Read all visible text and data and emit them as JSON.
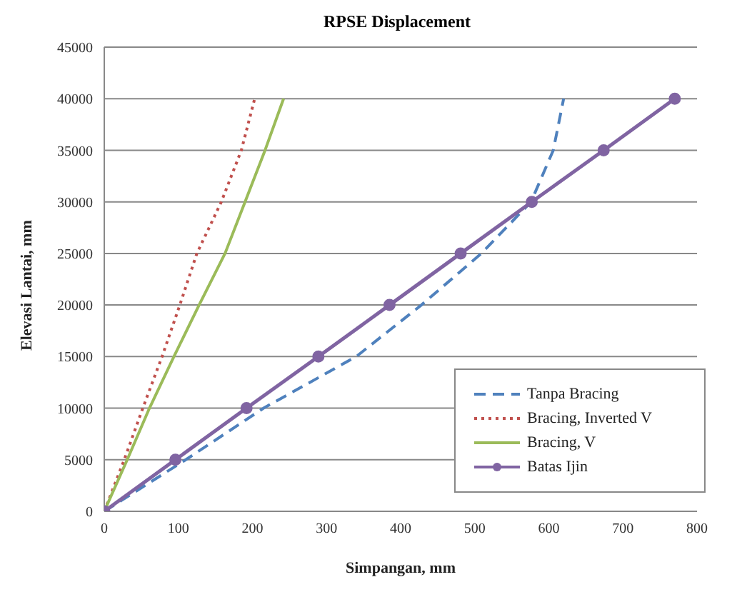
{
  "chart_data": {
    "type": "line",
    "title": "RPSE Displacement",
    "xlabel": "Simpangan, mm",
    "ylabel": "Elevasi Lantai, mm",
    "xlim": [
      0,
      800
    ],
    "xticks": [
      0,
      100,
      200,
      300,
      400,
      500,
      600,
      700,
      800
    ],
    "ylim": [
      0,
      45000
    ],
    "yticks": [
      0,
      5000,
      10000,
      15000,
      20000,
      25000,
      30000,
      35000,
      40000,
      45000
    ],
    "grid": "y",
    "legend": "bottom right",
    "series": [
      {
        "name": "Tanpa Bracing",
        "color": "#4f81bd",
        "line_style": "dashed",
        "marker": "none",
        "x": [
          0,
          110,
          215,
          340,
          428,
          509,
          576,
          606,
          620
        ],
        "values": [
          0,
          5000,
          10000,
          15000,
          20000,
          25000,
          30000,
          35000,
          40000
        ]
      },
      {
        "name": "Bracing, Inverted V",
        "color": "#c0504d",
        "line_style": "dotted",
        "marker": "none",
        "x": [
          0,
          27,
          52,
          78,
          102,
          125,
          158,
          185,
          203
        ],
        "values": [
          0,
          5000,
          10000,
          15000,
          20000,
          25000,
          30000,
          35000,
          40000
        ]
      },
      {
        "name": "Bracing, V",
        "color": "#9bbb59",
        "line_style": "solid",
        "marker": "none",
        "x": [
          0,
          31,
          61,
          94,
          128,
          163,
          190,
          217,
          242
        ],
        "values": [
          0,
          5000,
          10000,
          15000,
          20000,
          25000,
          30000,
          35000,
          40000
        ]
      },
      {
        "name": "Batas Ijin",
        "color": "#8064a2",
        "line_style": "solid",
        "marker": "circle",
        "x": [
          0,
          96,
          192,
          289,
          385,
          481,
          577,
          674,
          770
        ],
        "values": [
          0,
          5000,
          10000,
          15000,
          20000,
          25000,
          30000,
          35000,
          40000
        ]
      }
    ]
  }
}
